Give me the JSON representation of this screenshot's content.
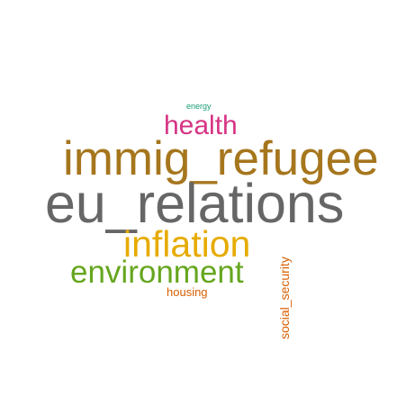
{
  "words": [
    {
      "text": "energy",
      "color": "#1b9e77"
    },
    {
      "text": "health",
      "color": "#d63384"
    },
    {
      "text": "immig_refugee",
      "color": "#a6761d"
    },
    {
      "text": "eu_relations",
      "color": "#666666"
    },
    {
      "text": "inflation",
      "color": "#e6ab02"
    },
    {
      "text": "environment",
      "color": "#66a61e"
    },
    {
      "text": "housing",
      "color": "#d95f02"
    },
    {
      "text": "social_security",
      "color": "#d95f02"
    }
  ]
}
